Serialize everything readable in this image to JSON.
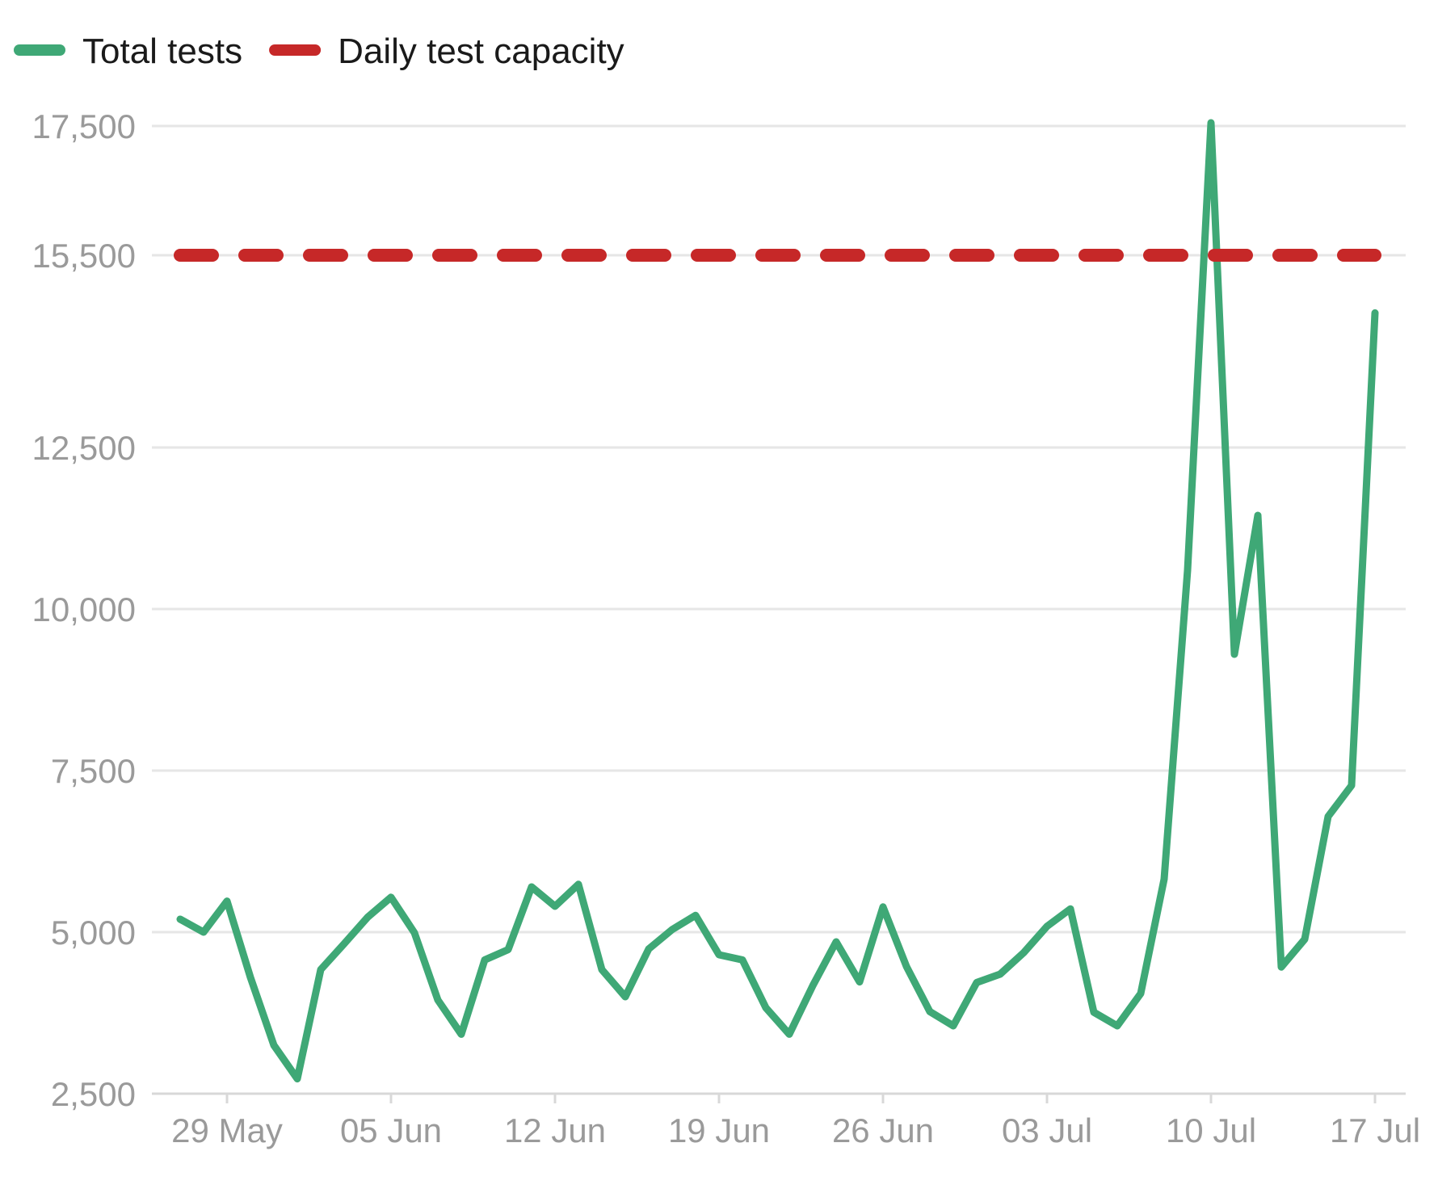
{
  "chart_data": {
    "type": "line",
    "title": "",
    "xlabel": "",
    "ylabel": "",
    "legend": {
      "placement": "top-left",
      "entries": [
        {
          "label": "Total tests",
          "color": "#3fa876",
          "style": "solid"
        },
        {
          "label": "Daily test capacity",
          "color": "#c62828",
          "style": "dashed"
        }
      ]
    },
    "ylim": [
      2500,
      17500
    ],
    "yticks": [
      2500,
      5000,
      7500,
      10000,
      12500,
      15500,
      17500
    ],
    "ytick_labels": [
      "2,500",
      "5,000",
      "7,500",
      "10,000",
      "12,500",
      "15,500",
      "17,500"
    ],
    "xticks": [
      {
        "date": "2020-05-29",
        "label": "29 May"
      },
      {
        "date": "2020-06-05",
        "label": "05 Jun"
      },
      {
        "date": "2020-06-12",
        "label": "12 Jun"
      },
      {
        "date": "2020-06-19",
        "label": "19 Jun"
      },
      {
        "date": "2020-06-26",
        "label": "26 Jun"
      },
      {
        "date": "2020-07-03",
        "label": "03 Jul"
      },
      {
        "date": "2020-07-10",
        "label": "10 Jul"
      },
      {
        "date": "2020-07-17",
        "label": "17 Jul"
      }
    ],
    "x": [
      "2020-05-27",
      "2020-05-28",
      "2020-05-29",
      "2020-05-30",
      "2020-05-31",
      "2020-06-01",
      "2020-06-02",
      "2020-06-03",
      "2020-06-04",
      "2020-06-05",
      "2020-06-06",
      "2020-06-07",
      "2020-06-08",
      "2020-06-09",
      "2020-06-10",
      "2020-06-11",
      "2020-06-12",
      "2020-06-13",
      "2020-06-14",
      "2020-06-15",
      "2020-06-16",
      "2020-06-17",
      "2020-06-18",
      "2020-06-19",
      "2020-06-20",
      "2020-06-21",
      "2020-06-22",
      "2020-06-23",
      "2020-06-24",
      "2020-06-25",
      "2020-06-26",
      "2020-06-27",
      "2020-06-28",
      "2020-06-29",
      "2020-06-30",
      "2020-07-01",
      "2020-07-02",
      "2020-07-03",
      "2020-07-04",
      "2020-07-05",
      "2020-07-06",
      "2020-07-07",
      "2020-07-08",
      "2020-07-09",
      "2020-07-10",
      "2020-07-11",
      "2020-07-12",
      "2020-07-13",
      "2020-07-14",
      "2020-07-15",
      "2020-07-16",
      "2020-07-17"
    ],
    "series": [
      {
        "name": "Total tests",
        "color": "#3fa876",
        "values": [
          5200,
          5000,
          5480,
          4300,
          3250,
          2730,
          4420,
          4820,
          5230,
          5540,
          4990,
          3950,
          3420,
          4570,
          4730,
          5700,
          5400,
          5740,
          4420,
          4000,
          4740,
          5040,
          5260,
          4650,
          4570,
          3830,
          3420,
          4170,
          4850,
          4230,
          5390,
          4470,
          3770,
          3550,
          4220,
          4350,
          4680,
          5090,
          5360,
          3760,
          3550,
          4050,
          5820,
          10600,
          17550,
          9300,
          11450,
          4460,
          4890,
          6790,
          7270,
          14600
        ]
      },
      {
        "name": "Daily test capacity",
        "color": "#c62828",
        "style": "dashed",
        "values": [
          15500,
          15500,
          15500,
          15500,
          15500,
          15500,
          15500,
          15500,
          15500,
          15500,
          15500,
          15500,
          15500,
          15500,
          15500,
          15500,
          15500,
          15500,
          15500,
          15500,
          15500,
          15500,
          15500,
          15500,
          15500,
          15500,
          15500,
          15500,
          15500,
          15500,
          15500,
          15500,
          15500,
          15500,
          15500,
          15500,
          15500,
          15500,
          15500,
          15500,
          15500,
          15500,
          15500,
          15500,
          15500,
          15500,
          15500,
          15500,
          15500,
          15500,
          15500,
          15500
        ]
      }
    ],
    "grid": true
  }
}
